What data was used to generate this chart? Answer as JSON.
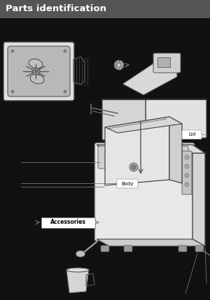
{
  "title": "Parts identification",
  "title_bg_color": "#555555",
  "title_text_color": "#ffffff",
  "title_fontsize": 9.5,
  "bg_color": "#111111",
  "label_lid": "Lid",
  "label_body": "Body",
  "label_accessories": "Accessories",
  "label_fontsize": 5,
  "label_bg": "#ffffff",
  "label_text": "#000000",
  "fig_width": 3.0,
  "fig_height": 4.29,
  "dpi": 100,
  "line_color": "#888888",
  "drawing_color": "#cccccc",
  "drawing_edge": "#333333",
  "dark_gray": "#666666",
  "mid_gray": "#aaaaaa"
}
